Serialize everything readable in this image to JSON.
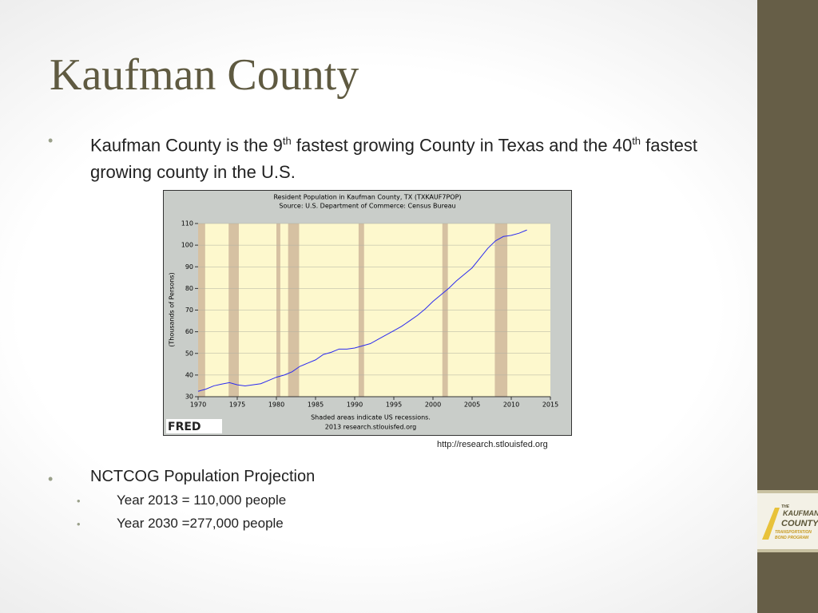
{
  "slide": {
    "title": "Kaufman County",
    "bullet1": [
      "Kaufman County is the 9",
      "th",
      " fastest growing County in Texas and the 40",
      "th",
      " fastest growing county in the U.S."
    ],
    "source": "http://research.stlouisfed.org",
    "bullet2": "NCTCOG Population Projection",
    "subbullets": [
      "Year 2013 = 110,000 people",
      "Year 2030 =277,000 people"
    ],
    "logo": [
      "THE",
      "KAUFMAN",
      "COUNTY",
      "TRANSPORTATION",
      "BOND PROGRAM"
    ]
  },
  "chart_data": {
    "type": "line",
    "title": "Resident Population in Kaufman County, TX (TXKAUF7POP)",
    "subtitle": "Source: U.S. Department of Commerce: Census Bureau",
    "y_label": "(Thousands of Persons)",
    "note": "Shaded areas indicate US recessions.",
    "credit": "2013 research.stlouisfed.org",
    "brand": "FRED",
    "x": [
      1970,
      1971,
      1972,
      1973,
      1974,
      1975,
      1976,
      1977,
      1978,
      1979,
      1980,
      1981,
      1982,
      1983,
      1984,
      1985,
      1986,
      1987,
      1988,
      1989,
      1990,
      1991,
      1992,
      1993,
      1994,
      1995,
      1996,
      1997,
      1998,
      1999,
      2000,
      2001,
      2002,
      2003,
      2004,
      2005,
      2006,
      2007,
      2008,
      2009,
      2010,
      2011,
      2012
    ],
    "values": [
      32.5,
      33.5,
      35,
      35.8,
      36.5,
      35.5,
      35,
      35.5,
      36,
      37.5,
      39,
      40,
      41.5,
      44,
      45.5,
      47,
      49.5,
      50.5,
      52,
      52,
      52.5,
      53.5,
      54.5,
      56.5,
      58.5,
      60.5,
      62.5,
      65,
      67.5,
      70.5,
      74,
      77,
      80,
      83.5,
      86.5,
      89.5,
      94,
      98.5,
      102,
      104,
      104.5,
      105.5,
      107
    ],
    "color": "#2b2bf0",
    "recessions": [
      [
        1970,
        1970.9
      ],
      [
        1973.9,
        1975.2
      ],
      [
        1980,
        1980.5
      ],
      [
        1981.5,
        1982.9
      ],
      [
        1990.5,
        1991.2
      ],
      [
        2001.2,
        2001.9
      ],
      [
        2007.9,
        2009.5
      ]
    ],
    "recession_color": "#d6c1a2",
    "xlim": [
      1970,
      2015
    ],
    "ylim": [
      30,
      110
    ],
    "xticks": [
      1970,
      1975,
      1980,
      1985,
      1990,
      1995,
      2000,
      2005,
      2010,
      2015
    ],
    "yticks": [
      30,
      40,
      50,
      60,
      70,
      80,
      90,
      100,
      110
    ],
    "grid": true
  }
}
